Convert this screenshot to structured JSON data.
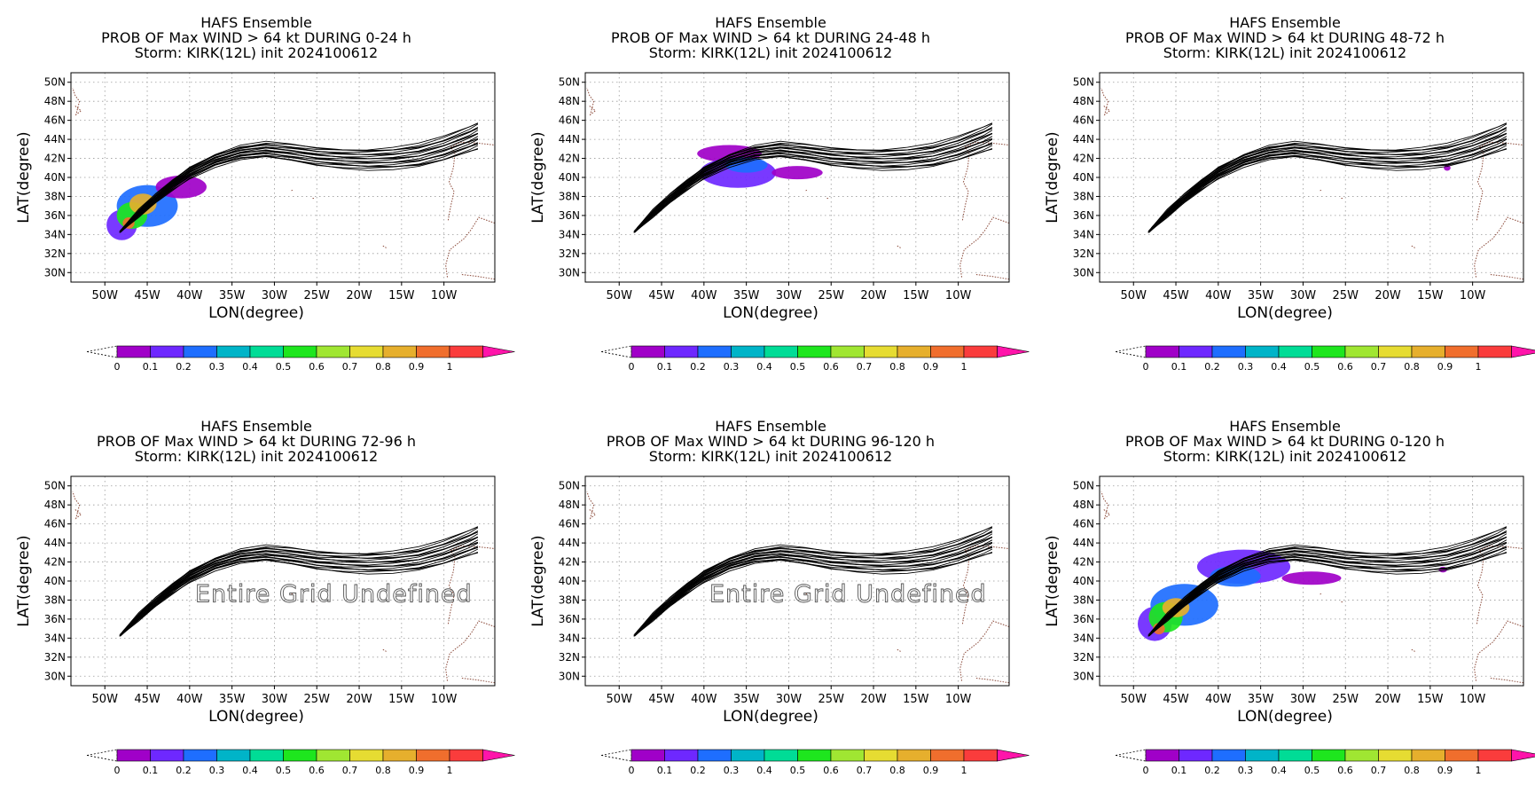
{
  "chart_data": [
    {
      "type": "contour-map",
      "title_lines": [
        "HAFS Ensemble",
        "PROB OF Max WIND > 64 kt DURING  0-24 h",
        "Storm: KIRK(12L) init 2024100612"
      ],
      "xlabel": "LON(degree)",
      "ylabel": "LAT(degree)",
      "xlim": [
        -54,
        -4
      ],
      "ylim": [
        29,
        51
      ],
      "x_ticks": [
        "50W",
        "45W",
        "40W",
        "35W",
        "30W",
        "25W",
        "20W",
        "15W",
        "10W"
      ],
      "y_ticks": [
        "30N",
        "32N",
        "34N",
        "36N",
        "38N",
        "40N",
        "42N",
        "44N",
        "46N",
        "48N",
        "50N"
      ],
      "undefined_label": "",
      "prob_blobs": [
        {
          "lon": -48.0,
          "lat": 35.0,
          "rlon": 1.8,
          "rlat": 1.6,
          "level": 0.15
        },
        {
          "lon": -45.0,
          "lat": 37.0,
          "rlon": 3.6,
          "rlat": 2.2,
          "level": 0.2
        },
        {
          "lon": -41.0,
          "lat": 39.0,
          "rlon": 3.0,
          "rlat": 1.2,
          "level": 0.05
        },
        {
          "lon": -46.8,
          "lat": 36.0,
          "rlon": 1.8,
          "rlat": 1.4,
          "level": 0.55
        },
        {
          "lon": -45.5,
          "lat": 37.2,
          "rlon": 1.6,
          "rlat": 1.1,
          "level": 0.8
        },
        {
          "lon": -47.2,
          "lat": 35.2,
          "rlon": 0.7,
          "rlat": 0.6,
          "level": 0.95
        }
      ]
    },
    {
      "type": "contour-map",
      "title_lines": [
        "HAFS Ensemble",
        "PROB OF Max WIND > 64 kt DURING 24-48 h",
        "Storm: KIRK(12L) init 2024100612"
      ],
      "xlabel": "LON(degree)",
      "ylabel": "LAT(degree)",
      "xlim": [
        -54,
        -4
      ],
      "ylim": [
        29,
        51
      ],
      "x_ticks": [
        "50W",
        "45W",
        "40W",
        "35W",
        "30W",
        "25W",
        "20W",
        "15W",
        "10W"
      ],
      "y_ticks": [
        "30N",
        "32N",
        "34N",
        "36N",
        "38N",
        "40N",
        "42N",
        "44N",
        "46N",
        "48N",
        "50N"
      ],
      "undefined_label": "",
      "prob_blobs": [
        {
          "lon": -37.0,
          "lat": 42.5,
          "rlon": 3.8,
          "rlat": 0.9,
          "level": 0.05
        },
        {
          "lon": -36.0,
          "lat": 40.5,
          "rlon": 4.5,
          "rlat": 1.6,
          "level": 0.1
        },
        {
          "lon": -29.0,
          "lat": 40.5,
          "rlon": 3.0,
          "rlat": 0.7,
          "level": 0.05
        },
        {
          "lon": -35.0,
          "lat": 41.3,
          "rlon": 2.5,
          "rlat": 0.8,
          "level": 0.2
        }
      ]
    },
    {
      "type": "contour-map",
      "title_lines": [
        "HAFS Ensemble",
        "PROB OF Max WIND > 64 kt DURING 48-72 h",
        "Storm: KIRK(12L) init 2024100612"
      ],
      "xlabel": "LON(degree)",
      "ylabel": "LAT(degree)",
      "xlim": [
        -54,
        -4
      ],
      "ylim": [
        29,
        51
      ],
      "x_ticks": [
        "50W",
        "45W",
        "40W",
        "35W",
        "30W",
        "25W",
        "20W",
        "15W",
        "10W"
      ],
      "y_ticks": [
        "30N",
        "32N",
        "34N",
        "36N",
        "38N",
        "40N",
        "42N",
        "44N",
        "46N",
        "48N",
        "50N"
      ],
      "undefined_label": "",
      "prob_blobs": [
        {
          "lon": -13.0,
          "lat": 41.0,
          "rlon": 0.4,
          "rlat": 0.3,
          "level": 0.05
        }
      ]
    },
    {
      "type": "contour-map",
      "title_lines": [
        "HAFS Ensemble",
        "PROB OF Max WIND > 64 kt DURING 72-96 h",
        "Storm: KIRK(12L) init 2024100612"
      ],
      "xlabel": "LON(degree)",
      "ylabel": "LAT(degree)",
      "xlim": [
        -54,
        -4
      ],
      "ylim": [
        29,
        51
      ],
      "x_ticks": [
        "50W",
        "45W",
        "40W",
        "35W",
        "30W",
        "25W",
        "20W",
        "15W",
        "10W"
      ],
      "y_ticks": [
        "30N",
        "32N",
        "34N",
        "36N",
        "38N",
        "40N",
        "42N",
        "44N",
        "46N",
        "48N",
        "50N"
      ],
      "undefined_label": "Entire Grid Undefined",
      "prob_blobs": []
    },
    {
      "type": "contour-map",
      "title_lines": [
        "HAFS Ensemble",
        "PROB OF Max WIND > 64 kt DURING 96-120 h",
        "Storm: KIRK(12L) init 2024100612"
      ],
      "xlabel": "LON(degree)",
      "ylabel": "LAT(degree)",
      "xlim": [
        -54,
        -4
      ],
      "ylim": [
        29,
        51
      ],
      "x_ticks": [
        "50W",
        "45W",
        "40W",
        "35W",
        "30W",
        "25W",
        "20W",
        "15W",
        "10W"
      ],
      "y_ticks": [
        "30N",
        "32N",
        "34N",
        "36N",
        "38N",
        "40N",
        "42N",
        "44N",
        "46N",
        "48N",
        "50N"
      ],
      "undefined_label": "Entire Grid Undefined",
      "prob_blobs": []
    },
    {
      "type": "contour-map",
      "title_lines": [
        "HAFS Ensemble",
        "PROB OF Max WIND > 64 kt DURING 0-120 h",
        "Storm: KIRK(12L) init 2024100612"
      ],
      "xlabel": "LON(degree)",
      "ylabel": "LAT(degree)",
      "xlim": [
        -54,
        -4
      ],
      "ylim": [
        29,
        51
      ],
      "x_ticks": [
        "50W",
        "45W",
        "40W",
        "35W",
        "30W",
        "25W",
        "20W",
        "15W",
        "10W"
      ],
      "y_ticks": [
        "30N",
        "32N",
        "34N",
        "36N",
        "38N",
        "40N",
        "42N",
        "44N",
        "46N",
        "48N",
        "50N"
      ],
      "undefined_label": "",
      "prob_blobs": [
        {
          "lon": -47.5,
          "lat": 35.5,
          "rlon": 2.0,
          "rlat": 1.8,
          "level": 0.15
        },
        {
          "lon": -44.0,
          "lat": 37.5,
          "rlon": 4.0,
          "rlat": 2.2,
          "level": 0.2
        },
        {
          "lon": -37.0,
          "lat": 41.5,
          "rlon": 5.5,
          "rlat": 1.8,
          "level": 0.1
        },
        {
          "lon": -29.0,
          "lat": 40.3,
          "rlon": 3.5,
          "rlat": 0.7,
          "level": 0.05
        },
        {
          "lon": -38.0,
          "lat": 40.5,
          "rlon": 3.0,
          "rlat": 1.1,
          "level": 0.2
        },
        {
          "lon": -46.2,
          "lat": 36.2,
          "rlon": 2.0,
          "rlat": 1.6,
          "level": 0.55
        },
        {
          "lon": -45.0,
          "lat": 37.2,
          "rlon": 1.6,
          "rlat": 1.0,
          "level": 0.8
        },
        {
          "lon": -47.0,
          "lat": 35.0,
          "rlon": 0.7,
          "rlat": 0.6,
          "level": 0.95
        },
        {
          "lon": -13.5,
          "lat": 41.2,
          "rlon": 0.5,
          "rlat": 0.3,
          "level": 0.05
        }
      ]
    }
  ],
  "colorbar": {
    "labels": [
      "0",
      "0.1",
      "0.2",
      "0.3",
      "0.4",
      "0.5",
      "0.6",
      "0.7",
      "0.8",
      "0.9",
      "1"
    ],
    "colors": [
      "#a000c8",
      "#6e28ff",
      "#1e6eff",
      "#00b4c8",
      "#00dc96",
      "#1ee61e",
      "#a0e632",
      "#e6dc32",
      "#e6af2d",
      "#f06e2d",
      "#fa3c3c",
      "#ff14aa"
    ]
  },
  "tracks": {
    "count": 20,
    "path": [
      [
        -48,
        34.5
      ],
      [
        -46,
        36.2
      ],
      [
        -44,
        37.8
      ],
      [
        -42,
        39.2
      ],
      [
        -40,
        40.5
      ],
      [
        -37,
        41.8
      ],
      [
        -34,
        42.6
      ],
      [
        -31,
        42.9
      ],
      [
        -28,
        42.6
      ],
      [
        -25,
        42.2
      ],
      [
        -22,
        42.0
      ],
      [
        -19,
        41.9
      ],
      [
        -16,
        42.0
      ],
      [
        -13,
        42.3
      ],
      [
        -10,
        43.0
      ],
      [
        -7,
        44.0
      ],
      [
        -6,
        44.4
      ]
    ]
  }
}
